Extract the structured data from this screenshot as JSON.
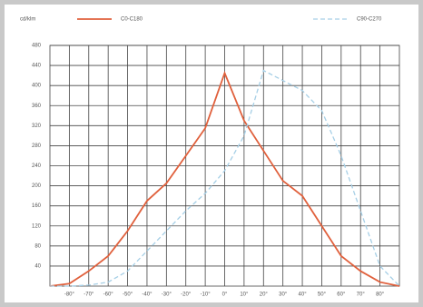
{
  "chart_data": {
    "type": "line",
    "unit_label": "cd/klm",
    "x": [
      -90,
      -80,
      -70,
      -60,
      -50,
      -40,
      -30,
      -20,
      -10,
      0,
      10,
      20,
      30,
      40,
      50,
      60,
      70,
      80,
      90
    ],
    "series": [
      {
        "name": "C0-C180",
        "color": "#e0603c",
        "dashed": false,
        "values": [
          0,
          5,
          30,
          60,
          110,
          170,
          205,
          260,
          315,
          425,
          330,
          270,
          210,
          180,
          120,
          60,
          30,
          8,
          0
        ]
      },
      {
        "name": "C90-C270",
        "color": "#a6cfe6",
        "dashed": true,
        "values": [
          0,
          0,
          2,
          8,
          30,
          70,
          110,
          150,
          185,
          230,
          300,
          430,
          410,
          390,
          350,
          260,
          150,
          40,
          0
        ]
      }
    ],
    "xlim": [
      -90,
      90
    ],
    "xticks": [
      {
        "value": -80,
        "label": "-80°"
      },
      {
        "value": -70,
        "label": "-70°"
      },
      {
        "value": -60,
        "label": "-60°"
      },
      {
        "value": -50,
        "label": "-50°"
      },
      {
        "value": -40,
        "label": "-40°"
      },
      {
        "value": -30,
        "label": "-30°"
      },
      {
        "value": -20,
        "label": "-20°"
      },
      {
        "value": -10,
        "label": "-10°"
      },
      {
        "value": 0,
        "label": "0°"
      },
      {
        "value": 10,
        "label": "10°"
      },
      {
        "value": 20,
        "label": "20°"
      },
      {
        "value": 30,
        "label": "30°"
      },
      {
        "value": 40,
        "label": "40°"
      },
      {
        "value": 50,
        "label": "50°"
      },
      {
        "value": 60,
        "label": "60°"
      },
      {
        "value": 70,
        "label": "70°"
      },
      {
        "value": 80,
        "label": "80°"
      }
    ],
    "ylim": [
      0,
      480
    ],
    "yticks": [
      40,
      80,
      120,
      160,
      200,
      240,
      280,
      320,
      360,
      400,
      440,
      480
    ],
    "grid": true
  }
}
